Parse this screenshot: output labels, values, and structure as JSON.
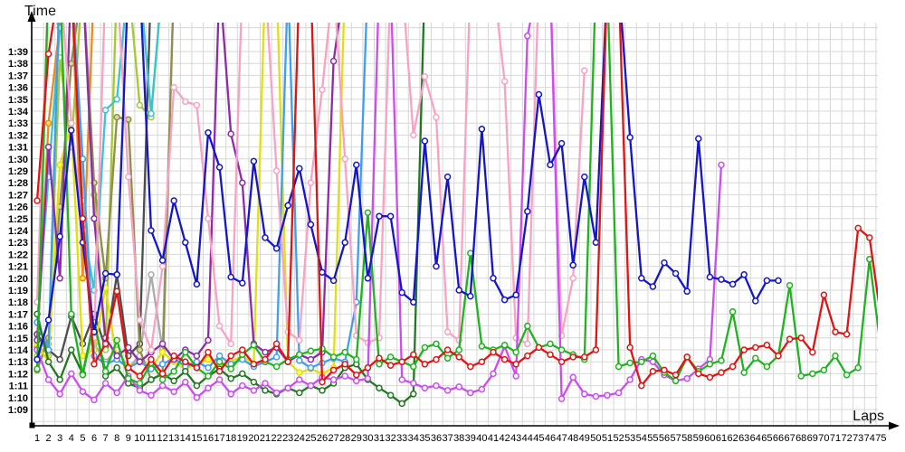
{
  "chart_data": {
    "type": "line",
    "title": "",
    "x_label": "Laps",
    "y_label": "Time",
    "x_range": [
      1,
      75
    ],
    "y_axis_seconds_range": [
      69,
      99
    ],
    "grid": true,
    "legend": "none",
    "grid_color": "#d7d7d7",
    "axis_color": "#000000",
    "background_color": "#ffffff",
    "y_ticks": [
      "1:39",
      "1:38",
      "1:37",
      "1:36",
      "1:35",
      "1:34",
      "1:33",
      "1:32",
      "1:31",
      "1:30",
      "1:29",
      "1:28",
      "1:27",
      "1:26",
      "1:25",
      "1:24",
      "1:23",
      "1:22",
      "1:21",
      "1:20",
      "1:19",
      "1:18",
      "1:17",
      "1:16",
      "1:15",
      "1:14",
      "1:13",
      "1:12",
      "1:11",
      "1:10",
      "1:09"
    ],
    "x_ticks": [
      1,
      2,
      3,
      4,
      5,
      6,
      7,
      8,
      9,
      10,
      11,
      12,
      13,
      14,
      15,
      16,
      17,
      18,
      19,
      20,
      21,
      22,
      23,
      24,
      25,
      26,
      27,
      28,
      29,
      30,
      31,
      32,
      33,
      34,
      35,
      36,
      37,
      38,
      39,
      40,
      41,
      42,
      43,
      44,
      45,
      46,
      47,
      48,
      49,
      50,
      51,
      52,
      53,
      54,
      55,
      56,
      57,
      58,
      59,
      60,
      61,
      62,
      63,
      64,
      65,
      66,
      67,
      68,
      69,
      70,
      71,
      72,
      73,
      74,
      75
    ],
    "off_scale_value": 105,
    "series": [
      {
        "name": "gray",
        "color": "#ababab",
        "marker_fill": "#ffffff",
        "start_lap": 1,
        "values": [
          75.3,
          73.5,
          105,
          105,
          86.5,
          74.5,
          73.0,
          74.0,
          72.5,
          73.5,
          80.3,
          74.0,
          105,
          105
        ]
      },
      {
        "name": "dark-gray",
        "color": "#4d4d4d",
        "marker_fill": "#ffffff",
        "start_lap": 1,
        "values": [
          75.3,
          74.0,
          73.2,
          76.8,
          74.5,
          77.0,
          74.2,
          80.3,
          73.5,
          74.5,
          105
        ]
      },
      {
        "name": "yellow-green",
        "color": "#a6c832",
        "marker_fill": "#ffffff",
        "start_lap": 1,
        "values": [
          73.5,
          74.5,
          98.5,
          91.0,
          105,
          87.0,
          74.0,
          105,
          105,
          94.5,
          93.5,
          105
        ]
      },
      {
        "name": "orange",
        "color": "#f0881e",
        "marker_fill": "#ffe14d",
        "start_lap": 1,
        "values": [
          74.2,
          93.0,
          101.3,
          105,
          80.0,
          105
        ]
      },
      {
        "name": "cyan",
        "color": "#3cc3cd",
        "marker_fill": "#ffffff",
        "start_lap": 1,
        "values": [
          76.3,
          88.5,
          101.0,
          105,
          84.5,
          79.0,
          94.1,
          95.0,
          105,
          105,
          93.8,
          105
        ]
      },
      {
        "name": "olive",
        "color": "#8f8f4b",
        "marker_fill": "#d8d89a",
        "start_lap": 1,
        "values": [
          72.3,
          75.0,
          86.0,
          98.0,
          105,
          88.0,
          80.0,
          93.5,
          93.3,
          74.0,
          71.5,
          72.0,
          105,
          105
        ]
      },
      {
        "name": "yellow",
        "color": "#e0e010",
        "marker_fill": "#ffff55",
        "start_lap": 1,
        "values": [
          74.5,
          73.0,
          89.5,
          93.0,
          73.5,
          74.0,
          79.2,
          73.2,
          72.6,
          73.0,
          72.5,
          73.8,
          73.0,
          72.4,
          72.8,
          73.2,
          72.6,
          73.0,
          73.5,
          72.8,
          105,
          105,
          73.0,
          72.1,
          72.4,
          72.0,
          72.5,
          105
        ]
      },
      {
        "name": "light-blue",
        "color": "#3f9fee",
        "marker_fill": "#ffffff",
        "start_lap": 1,
        "values": [
          76.3,
          74.0,
          105,
          105,
          90.0,
          73.5,
          72.8,
          73.2,
          72.5,
          73.0,
          72.4,
          72.8,
          73.3,
          72.6,
          73.0,
          72.5,
          73.5,
          72.8,
          73.2,
          72.6,
          73.0,
          73.4,
          105,
          73.1,
          72.5,
          72.9,
          73.3,
          73.0,
          78.0,
          105
        ]
      },
      {
        "name": "purple",
        "color": "#8e2ba8",
        "marker_fill": "#ffffff",
        "start_lap": 1,
        "values": [
          74.8,
          91.0,
          80.0,
          105,
          105,
          85.0,
          75.0,
          73.5,
          74.2,
          73.0,
          73.8,
          74.5,
          73.2,
          74.0,
          73.5,
          74.8,
          105,
          92.1,
          88.0,
          74.5,
          73.8,
          74.2,
          73.0,
          73.6,
          73.2,
          73.8,
          98.2,
          105
        ]
      },
      {
        "name": "dark-green",
        "color": "#217821",
        "marker_fill": "#ffffff",
        "start_lap": 1,
        "values": [
          77.0,
          73.0,
          71.5,
          74.0,
          72.0,
          76.5,
          71.8,
          72.5,
          71.2,
          70.8,
          71.5,
          72.0,
          71.4,
          72.2,
          71.0,
          71.8,
          72.4,
          71.6,
          72.0,
          71.3,
          70.6,
          70.3,
          70.8,
          70.4,
          71.0,
          70.6,
          71.2,
          72.5,
          72.8,
          71.5,
          70.8,
          70.2,
          69.5,
          70.3,
          105,
          105
        ]
      },
      {
        "name": "pink",
        "color": "#f8a2c4",
        "marker_fill": "#ffffff",
        "start_lap": 1,
        "values": [
          78.0,
          105,
          105,
          93.0,
          84.0,
          75.0,
          105,
          105,
          88.5,
          76.5,
          74.0,
          81.0,
          96.0,
          94.8,
          94.5,
          85.0,
          76.0,
          74.5,
          105,
          105,
          105,
          89.0,
          75.5,
          74.8,
          88.0,
          95.8,
          105,
          90.0,
          75.2,
          74.6,
          75.0,
          105,
          105,
          92.0,
          96.9,
          93.5,
          75.5,
          74.8,
          105,
          105,
          105,
          96.5,
          75.0,
          74.5,
          105,
          105,
          75.2,
          80.0,
          97.4
        ]
      },
      {
        "name": "magenta",
        "color": "#cc4cf2",
        "marker_fill": "#ffffff",
        "start_lap": 1,
        "values": [
          74.0,
          71.5,
          70.3,
          72.0,
          70.5,
          69.8,
          71.2,
          70.4,
          71.8,
          70.6,
          70.2,
          71.0,
          70.5,
          71.3,
          70.0,
          70.8,
          71.5,
          70.3,
          71.0,
          70.6,
          71.2,
          70.4,
          70.8,
          71.5,
          71.0,
          71.7,
          71.5,
          71.8,
          71.4,
          71.6,
          105,
          105,
          71.5,
          71.2,
          70.8,
          71.0,
          70.6,
          70.9,
          70.4,
          70.7,
          72.0,
          74.3,
          71.8,
          100.3,
          105,
          105,
          69.9,
          71.7,
          70.3,
          70.1,
          70.2,
          70.4,
          71.5,
          73.2,
          73.0,
          71.9,
          71.4,
          71.6,
          72.4,
          73.2,
          89.5
        ]
      },
      {
        "name": "green",
        "color": "#1fb41f",
        "marker_fill": "#ffffff",
        "start_lap": 1,
        "values": [
          72.4,
          105,
          105,
          77.0,
          71.9,
          76.3,
          72.2,
          74.8,
          71.6,
          71.2,
          72.9,
          71.5,
          72.2,
          73.8,
          72.5,
          71.8,
          73.0,
          72.4,
          73.6,
          74.4,
          73.0,
          72.6,
          73.2,
          73.6,
          73.9,
          74.1,
          73.4,
          73.8,
          73.2,
          85.5,
          72.8,
          73.4,
          73.0,
          72.6,
          74.2,
          74.5,
          73.3,
          74.0,
          82.1,
          74.3,
          74.0,
          74.4,
          73.8,
          76.0,
          74.2,
          74.5,
          74.0,
          73.6,
          73.2,
          105,
          105,
          72.6,
          72.9,
          73.0,
          73.5,
          72.1,
          71.4,
          73.4,
          72.2,
          72.8,
          73.1,
          77.2,
          72.1,
          73.3,
          72.6,
          73.5,
          79.4,
          71.8,
          72.0,
          72.3,
          73.5,
          71.9,
          72.5,
          81.6,
          74.0
        ]
      },
      {
        "name": "blue",
        "color": "#1515cc",
        "marker_fill": "#ffffff",
        "start_lap": 1,
        "values": [
          73.2,
          76.5,
          83.5,
          92.4,
          83.0,
          75.5,
          80.4,
          80.3,
          105,
          105,
          84.0,
          81.5,
          86.5,
          83.0,
          79.5,
          92.2,
          89.3,
          80.1,
          79.6,
          89.8,
          83.4,
          82.5,
          86.1,
          89.2,
          84.5,
          80.5,
          79.8,
          83.0,
          89.5,
          80.0,
          85.2,
          85.2,
          78.8,
          78.0,
          91.5,
          81.0,
          88.5,
          79.0,
          78.5,
          92.5,
          80.0,
          78.2,
          78.6,
          85.6,
          95.4,
          89.5,
          91.3,
          81.1,
          88.5,
          83.0,
          105,
          105,
          91.8,
          80.0,
          79.3,
          81.3,
          80.4,
          78.9,
          91.7,
          80.1,
          79.9,
          79.5,
          80.3,
          78.1,
          79.8,
          79.8
        ]
      },
      {
        "name": "red",
        "color": "#e01414",
        "marker_fill": "#ffffff",
        "start_lap": 1,
        "values": [
          86.5,
          98.8,
          105,
          105,
          85.0,
          72.8,
          74.5,
          78.9,
          72.5,
          71.8,
          73.2,
          72.0,
          73.5,
          73.0,
          72.5,
          73.8,
          72.2,
          73.5,
          74.0,
          72.8,
          73.2,
          74.5,
          73.0,
          105,
          105,
          71.3,
          72.3,
          72.8,
          71.9,
          72.5,
          73.3,
          72.7,
          73.0,
          73.6,
          72.8,
          73.2,
          74.0,
          73.4,
          72.6,
          73.0,
          73.8,
          73.2,
          72.8,
          73.5,
          74.2,
          73.6,
          73.0,
          73.4,
          73.4,
          74.0,
          105,
          105,
          74.2,
          71.0,
          72.2,
          72.3,
          71.9,
          73.4,
          72.0,
          71.7,
          72.1,
          72.6,
          74.0,
          74.2,
          74.4,
          73.5,
          74.9,
          75.0,
          73.8,
          78.6,
          75.5,
          75.3,
          84.2,
          83.4,
          76.7
        ]
      }
    ]
  }
}
